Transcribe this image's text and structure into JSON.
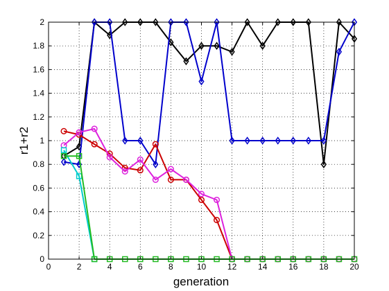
{
  "chart_data": {
    "type": "line",
    "title": "",
    "xlabel": "generation",
    "ylabel": "r1+r2",
    "xlim": [
      0,
      20
    ],
    "ylim": [
      0,
      2
    ],
    "xticks": [
      0,
      2,
      4,
      6,
      8,
      10,
      12,
      14,
      16,
      18,
      20
    ],
    "yticks": [
      0,
      0.2,
      0.4,
      0.6,
      0.8,
      1,
      1.2,
      1.4,
      1.6,
      1.8,
      2
    ],
    "grid": true,
    "series": [
      {
        "color": "#000000",
        "marker": "diamond",
        "x": [
          1,
          2,
          3,
          4,
          5,
          6,
          7,
          8,
          9,
          10,
          11,
          12,
          13,
          14,
          15,
          16,
          17,
          18,
          19,
          20
        ],
        "y": [
          0.87,
          0.95,
          2.0,
          1.89,
          2.0,
          2.0,
          2.0,
          1.83,
          1.67,
          1.8,
          1.8,
          1.75,
          2.0,
          1.8,
          2.0,
          2.0,
          2.0,
          0.8,
          2.0,
          1.86
        ]
      },
      {
        "color": "#0000cc",
        "marker": "diamond",
        "x": [
          1,
          2,
          3,
          4,
          5,
          6,
          7,
          8,
          9,
          10,
          11,
          12,
          13,
          14,
          15,
          16,
          17,
          18,
          19,
          20
        ],
        "y": [
          0.82,
          0.8,
          2.0,
          2.0,
          1.0,
          1.0,
          0.8,
          2.0,
          2.0,
          1.5,
          2.0,
          1.0,
          1.0,
          1.0,
          1.0,
          1.0,
          1.0,
          1.0,
          1.75,
          2.0
        ]
      },
      {
        "color": "#cc0000",
        "marker": "circle",
        "x": [
          1,
          2,
          3,
          4,
          5,
          6,
          7,
          8,
          9,
          10,
          11,
          12,
          13,
          14,
          15,
          16,
          17,
          18,
          19,
          20
        ],
        "y": [
          1.08,
          1.05,
          0.97,
          0.89,
          0.77,
          0.75,
          0.97,
          0.67,
          0.67,
          0.5,
          0.33,
          0,
          0,
          0,
          0,
          0,
          0,
          0,
          0,
          0
        ]
      },
      {
        "color": "#dd22dd",
        "marker": "circle",
        "x": [
          1,
          2,
          3,
          4,
          5,
          6,
          7,
          8,
          9,
          10,
          11,
          12,
          13,
          14,
          15,
          16,
          17,
          18,
          19,
          20
        ],
        "y": [
          0.96,
          1.07,
          1.1,
          0.86,
          0.74,
          0.84,
          0.67,
          0.76,
          0.67,
          0.55,
          0.5,
          0,
          0,
          0,
          0,
          0,
          0,
          0,
          0,
          0
        ]
      },
      {
        "color": "#00cccc",
        "marker": "square",
        "x": [
          1,
          2,
          3
        ],
        "y": [
          0.92,
          0.7,
          0
        ]
      },
      {
        "color": "#22bb22",
        "marker": "square",
        "x": [
          1,
          2,
          3,
          4,
          5,
          6,
          7,
          8,
          9,
          10,
          11,
          12,
          13,
          14,
          15,
          16,
          17,
          18,
          19,
          20
        ],
        "y": [
          0.87,
          0.87,
          0,
          0,
          0,
          0,
          0,
          0,
          0,
          0,
          0,
          0,
          0,
          0,
          0,
          0,
          0,
          0,
          0,
          0
        ]
      }
    ]
  }
}
